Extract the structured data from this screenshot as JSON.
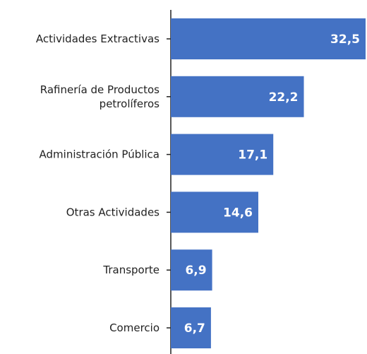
{
  "chart_data": {
    "type": "barh",
    "categories": [
      "Actividades Extractivas",
      "Rafinería de Productos\npetrolíferos",
      "Administración Pública",
      "Otras Actividades",
      "Transporte",
      "Comercio"
    ],
    "values": [
      32.5,
      22.2,
      17.1,
      14.6,
      6.9,
      6.7
    ],
    "value_labels": [
      "32,5",
      "22,2",
      "17,1",
      "14,6",
      "6,9",
      "6,7"
    ],
    "color": "#4472c4",
    "xlim": [
      0,
      32.5
    ]
  }
}
